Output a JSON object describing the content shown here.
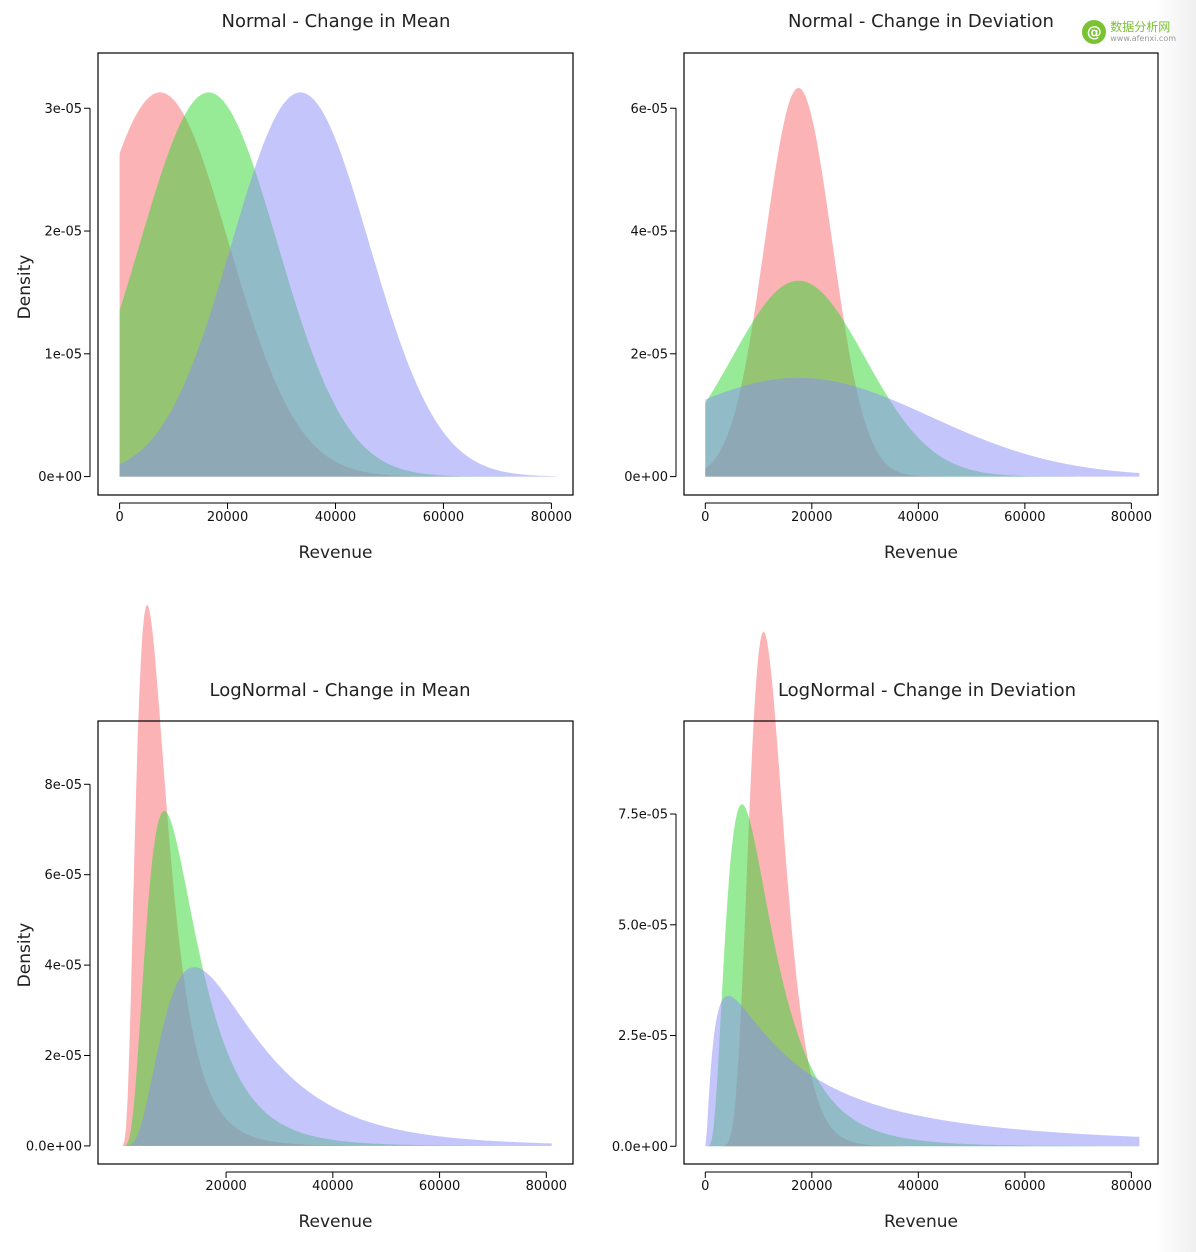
{
  "colors": {
    "red": "#f8686e",
    "green": "#2fd72f",
    "blue": "#8a8cf8",
    "axis": "#000000"
  },
  "watermark": {
    "icon": "at-sign-logo-icon",
    "brand": "数据分析网",
    "url": "www.afenxi.com"
  },
  "chart_data": [
    {
      "type": "area",
      "title": "Normal - Change in Mean",
      "xlabel": "Revenue",
      "ylabel": "Density",
      "xlim": [
        -4000,
        84000
      ],
      "ylim": [
        -1.5e-06,
        3.45e-05
      ],
      "xticks": [
        0,
        20000,
        40000,
        60000,
        80000
      ],
      "xtick_labels": [
        "0",
        "20000",
        "40000",
        "60000",
        "80000"
      ],
      "yticks": [
        0,
        1e-05,
        2e-05,
        3e-05
      ],
      "ytick_labels": [
        "0e+00",
        "1e-05",
        "2e-05",
        "3e-05"
      ],
      "x_range": [
        0,
        81000
      ],
      "series": [
        {
          "color": "red",
          "dist": "normal",
          "mu": 7500,
          "sigma": 12750
        },
        {
          "color": "green",
          "dist": "normal",
          "mu": 16500,
          "sigma": 12750
        },
        {
          "color": "blue",
          "dist": "normal",
          "mu": 33500,
          "sigma": 12750
        }
      ]
    },
    {
      "type": "area",
      "title": "Normal - Change in Deviation",
      "xlabel": "Revenue",
      "ylabel": "",
      "xlim": [
        -4000,
        85000
      ],
      "ylim": [
        -3e-06,
        6.9e-05
      ],
      "xticks": [
        0,
        20000,
        40000,
        60000,
        80000
      ],
      "xtick_labels": [
        "0",
        "20000",
        "40000",
        "60000",
        "80000"
      ],
      "yticks": [
        0,
        2e-05,
        4e-05,
        6e-05
      ],
      "ytick_labels": [
        "0e+00",
        "2e-05",
        "4e-05",
        "6e-05"
      ],
      "x_range": [
        0,
        81500
      ],
      "series": [
        {
          "color": "red",
          "dist": "normal",
          "mu": 17500,
          "sigma": 6300
        },
        {
          "color": "green",
          "dist": "normal",
          "mu": 17500,
          "sigma": 12500
        },
        {
          "color": "blue",
          "dist": "normal",
          "mu": 17500,
          "sigma": 24800
        }
      ]
    },
    {
      "type": "area",
      "title": "LogNormal - Change in Mean",
      "xlabel": "Revenue",
      "ylabel": "Density",
      "xlim": [
        -4000,
        85000
      ],
      "ylim": [
        -4e-06,
        9.4e-05
      ],
      "xticks": [
        20000,
        40000,
        60000,
        80000
      ],
      "xtick_labels": [
        "20000",
        "40000",
        "60000",
        "80000"
      ],
      "yticks": [
        0,
        2e-05,
        4e-05,
        6e-05,
        8e-05
      ],
      "ytick_labels": [
        "0.0e+00",
        "2e-05",
        "4e-05",
        "6e-05",
        "8e-05"
      ],
      "x_range": [
        0,
        81000
      ],
      "series": [
        {
          "color": "red",
          "dist": "lognormal",
          "mu": 8.86,
          "sigma": 0.55
        },
        {
          "color": "green",
          "dist": "lognormal",
          "mu": 9.34,
          "sigma": 0.55
        },
        {
          "color": "blue",
          "dist": "lognormal",
          "mu": 9.91,
          "sigma": 0.6
        }
      ]
    },
    {
      "type": "area",
      "title": "LogNormal - Change in Deviation",
      "xlabel": "Revenue",
      "ylabel": "",
      "xlim": [
        -4000,
        85000
      ],
      "ylim": [
        -4e-06,
        9.6e-05
      ],
      "xticks": [
        0,
        20000,
        40000,
        60000,
        80000
      ],
      "xtick_labels": [
        "0",
        "20000",
        "40000",
        "60000",
        "80000"
      ],
      "yticks": [
        0,
        2.5e-05,
        5e-05,
        7.5e-05
      ],
      "ytick_labels": [
        "0.0e+00",
        "2.5e-05",
        "5.0e-05",
        "7.5e-05"
      ],
      "x_range": [
        0,
        81500
      ],
      "series": [
        {
          "color": "red",
          "dist": "lognormal",
          "mu": 9.39,
          "sigma": 0.3
        },
        {
          "color": "green",
          "dist": "lognormal",
          "mu": 9.22,
          "sigma": 0.62
        },
        {
          "color": "blue",
          "dist": "lognormal",
          "mu": 9.93,
          "sigma": 1.25
        }
      ]
    }
  ]
}
